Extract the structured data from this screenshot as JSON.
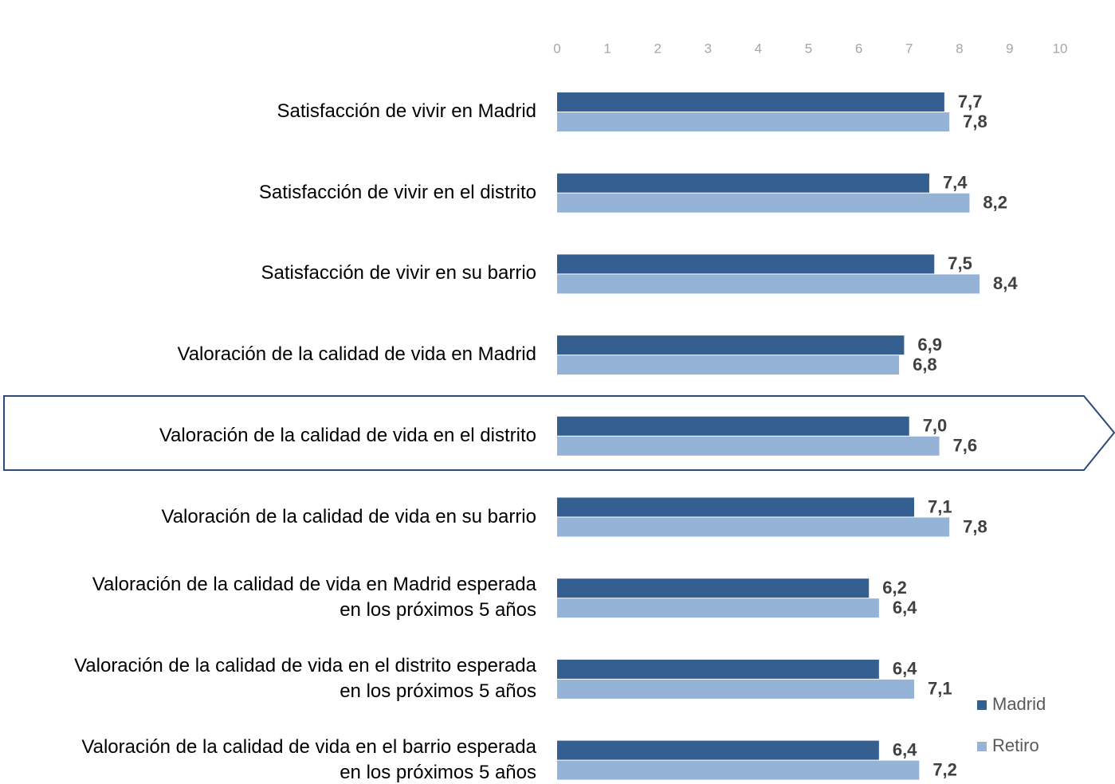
{
  "chart_data": {
    "type": "hbar",
    "categories": [
      "Satisfacción de vivir en Madrid",
      "Satisfacción de vivir en el distrito",
      "Satisfacción de vivir en su barrio",
      "Valoración de la calidad de vida en Madrid",
      "Valoración de la calidad de vida en el distrito",
      "Valoración de la calidad de vida en su barrio",
      "Valoración de la calidad de vida en Madrid esperada\nen los próximos 5 años",
      "Valoración de la calidad de vida en el distrito esperada\nen los próximos 5 años",
      "Valoración de la calidad de vida en el barrio esperada\nen los próximos 5 años"
    ],
    "series": [
      {
        "name": "Madrid",
        "color": "#365f91",
        "values": [
          7.7,
          7.4,
          7.5,
          6.9,
          7.0,
          7.1,
          6.2,
          6.4,
          6.4
        ],
        "value_labels": [
          "7,7",
          "7,4",
          "7,5",
          "6,9",
          "7,0",
          "7,1",
          "6,2",
          "6,4",
          "6,4"
        ]
      },
      {
        "name": "Retiro",
        "color": "#95b3d7",
        "values": [
          7.8,
          8.2,
          8.4,
          6.8,
          7.6,
          7.8,
          6.4,
          7.1,
          7.2
        ],
        "value_labels": [
          "7,8",
          "8,2",
          "8,4",
          "6,8",
          "7,6",
          "7,8",
          "6,4",
          "7,1",
          "7,2"
        ]
      }
    ],
    "xlim": [
      0,
      10
    ],
    "xticks": [
      0,
      1,
      2,
      3,
      4,
      5,
      6,
      7,
      8,
      9,
      10
    ],
    "legend": "bottom-right"
  }
}
